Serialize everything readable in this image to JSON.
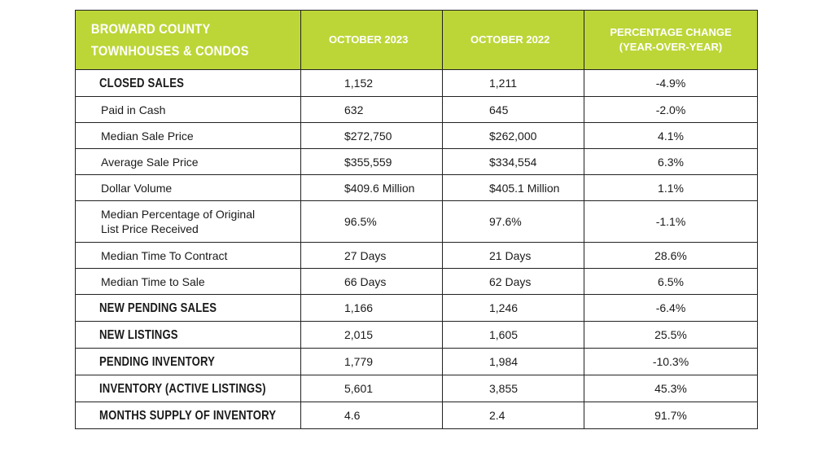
{
  "header": {
    "title_line1": "BROWARD COUNTY",
    "title_line2": "TOWNHOUSES & CONDOS",
    "col_2023": "OCTOBER 2023",
    "col_2022": "OCTOBER 2022",
    "col_change_line1": "PERCENTAGE CHANGE",
    "col_change_line2": "(YEAR-OVER-YEAR)"
  },
  "rows": [
    {
      "label": "CLOSED SALES",
      "v2023": "1,152",
      "v2022": "1,211",
      "change": "-4.9%"
    },
    {
      "label": "Paid in Cash",
      "v2023": "632",
      "v2022": "645",
      "change": "-2.0%"
    },
    {
      "label": "Median Sale Price",
      "v2023": "$272,750",
      "v2022": "$262,000",
      "change": "4.1%"
    },
    {
      "label": "Average Sale Price",
      "v2023": "$355,559",
      "v2022": "$334,554",
      "change": "6.3%"
    },
    {
      "label": "Dollar Volume",
      "v2023": "$409.6 Million",
      "v2022": "$405.1 Million",
      "change": "1.1%"
    },
    {
      "label_line1": "Median Percentage of Original",
      "label_line2": "List Price Received",
      "v2023": "96.5%",
      "v2022": "97.6%",
      "change": "-1.1%"
    },
    {
      "label": "Median Time To Contract",
      "v2023": "27 Days",
      "v2022": "21 Days",
      "change": "28.6%"
    },
    {
      "label": "Median Time to Sale",
      "v2023": "66 Days",
      "v2022": "62 Days",
      "change": "6.5%"
    },
    {
      "label": "NEW PENDING SALES",
      "v2023": "1,166",
      "v2022": "1,246",
      "change": "-6.4%"
    },
    {
      "label": "NEW LISTINGS",
      "v2023": "2,015",
      "v2022": "1,605",
      "change": "25.5%"
    },
    {
      "label": "PENDING INVENTORY",
      "v2023": "1,779",
      "v2022": "1,984",
      "change": "-10.3%"
    },
    {
      "label": "INVENTORY (ACTIVE LISTINGS)",
      "v2023": "5,601",
      "v2022": "3,855",
      "change": "45.3%"
    },
    {
      "label": "MONTHS SUPPLY OF INVENTORY",
      "v2023": "4.6",
      "v2022": "2.4",
      "change": "91.7%"
    }
  ],
  "colors": {
    "header_bg": "#bcd637",
    "header_text": "#ffffff",
    "border": "#222222"
  }
}
